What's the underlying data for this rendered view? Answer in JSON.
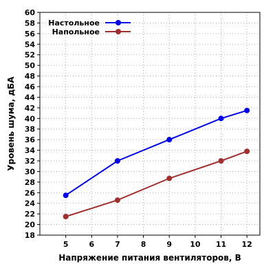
{
  "chart_data": {
    "type": "line",
    "xlabel": "Напряжение питания вентиляторов, В",
    "ylabel": "Уровень шума, дБА",
    "xlim": [
      4,
      12.5
    ],
    "ylim": [
      18,
      60
    ],
    "x_ticks": [
      5,
      6,
      7,
      8,
      9,
      10,
      11,
      12
    ],
    "y_ticks": [
      18,
      20,
      22,
      24,
      26,
      28,
      30,
      32,
      34,
      36,
      38,
      40,
      42,
      44,
      46,
      48,
      50,
      52,
      54,
      56,
      58,
      60
    ],
    "grid": true,
    "legend_position": "top-left",
    "series": [
      {
        "name": "Настольное",
        "color": "#0000ee",
        "x": [
          5,
          7,
          9,
          11,
          12
        ],
        "values": [
          25.5,
          32.0,
          36.0,
          40.0,
          41.5
        ]
      },
      {
        "name": "Напольное",
        "color": "#a03030",
        "x": [
          5,
          7,
          9,
          11,
          12
        ],
        "values": [
          21.5,
          24.6,
          28.7,
          32.0,
          33.8
        ]
      }
    ]
  }
}
